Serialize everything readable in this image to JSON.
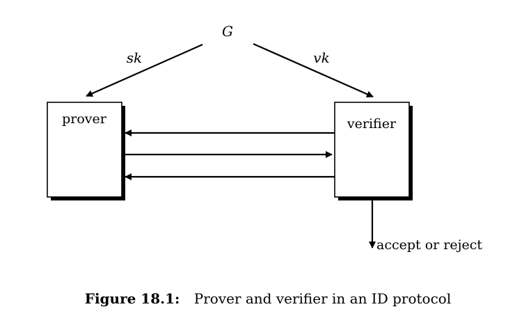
{
  "diagram": {
    "generator": "G",
    "secret_key_label": "sk",
    "verification_key_label": "vk",
    "prover_label": "prover",
    "verifier_label": "verifier",
    "output_label": "accept or reject"
  },
  "caption": {
    "number": "Figure 18.1:",
    "text": "Prover and verifier in an ID protocol"
  }
}
